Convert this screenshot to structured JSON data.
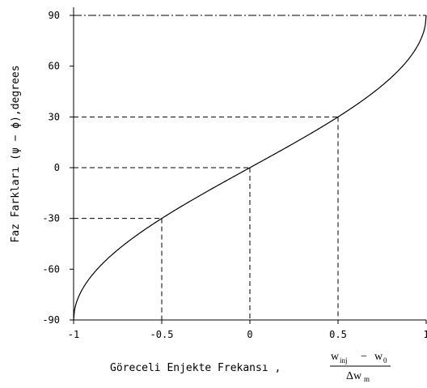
{
  "chart_data": {
    "type": "line",
    "ylabel": "Faz Farkları (ψ − ϕ),degrees",
    "xlabel_text": "Göreceli Enjekte Frekansı ,",
    "xlabel_fraction": {
      "num_main": "w",
      "num_sub1": "inj",
      "num_minus": "−",
      "num_main2": "w",
      "num_sub2": "0",
      "den_main": "Δw",
      "den_sub": "m"
    },
    "xlim": [
      -1,
      1
    ],
    "ylim": [
      -90,
      90
    ],
    "xticks": [
      -1,
      -0.5,
      0,
      0.5,
      1
    ],
    "xtick_labels": [
      "-1",
      "-0.5",
      "0",
      "0.5",
      "1"
    ],
    "yticks": [
      -90,
      -60,
      -30,
      0,
      30,
      60,
      90
    ],
    "ytick_labels": [
      "-90",
      "-60",
      "-30",
      "0",
      "30",
      "60",
      "90"
    ],
    "series": [
      {
        "function": "arcsin",
        "x": [
          -1,
          -0.99,
          -0.95,
          -0.9,
          -0.8,
          -0.7,
          -0.6,
          -0.5,
          -0.4,
          -0.3,
          -0.2,
          -0.1,
          0,
          0.1,
          0.2,
          0.3,
          0.4,
          0.5,
          0.6,
          0.7,
          0.8,
          0.9,
          0.95,
          0.99,
          1
        ],
        "y": [
          -90,
          -81.9,
          -71.8,
          -64.2,
          -53.1,
          -44.4,
          -36.9,
          -30,
          -23.6,
          -17.5,
          -11.5,
          -5.7,
          0,
          5.7,
          11.5,
          17.5,
          23.6,
          30,
          36.9,
          44.4,
          53.1,
          64.2,
          71.8,
          81.9,
          90
        ]
      }
    ],
    "reference_points": [
      {
        "x": -0.5,
        "y": -30
      },
      {
        "x": 0,
        "y": 0
      },
      {
        "x": 0.5,
        "y": 30
      }
    ],
    "reference_line_y": 90,
    "grid": false
  }
}
